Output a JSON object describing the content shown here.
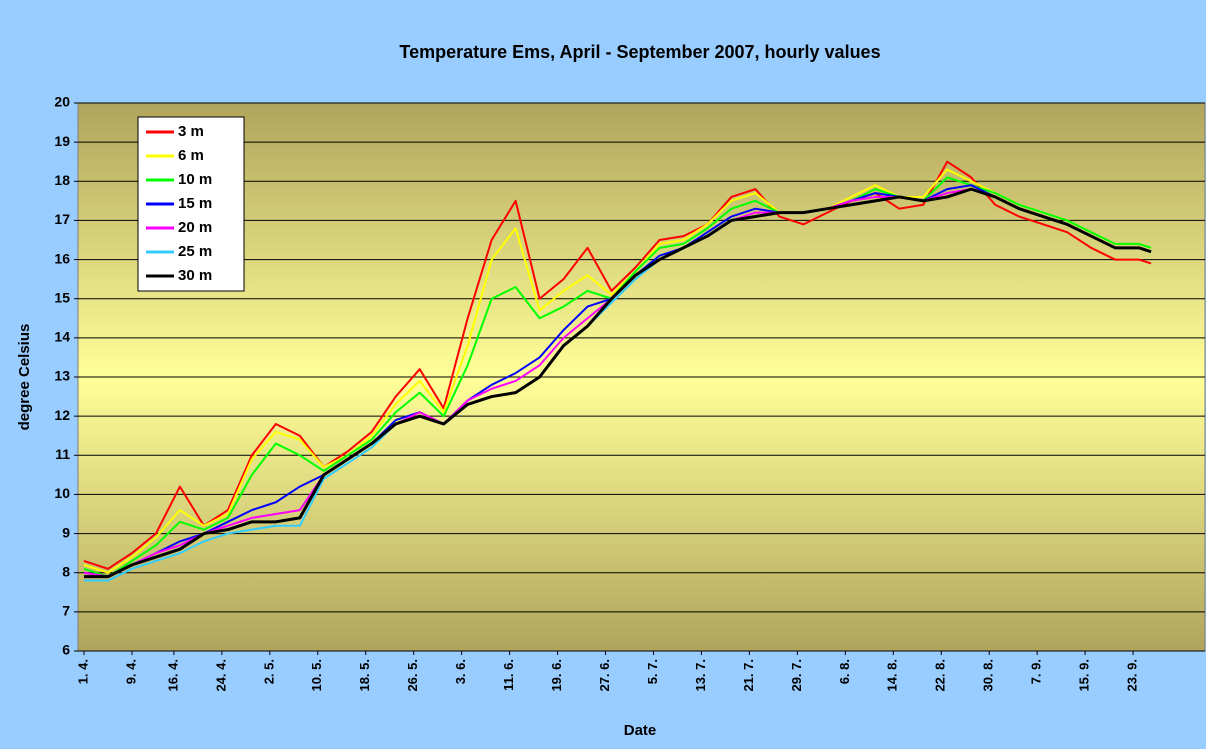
{
  "chart_data": {
    "type": "line",
    "title": "Temperature Ems, April - September 2007, hourly values",
    "x_label": "Date",
    "y_label": "degree Celsius",
    "x": [
      0,
      4,
      8,
      12,
      16,
      20,
      24,
      28,
      32,
      36,
      40,
      44,
      48,
      52,
      56,
      60,
      64,
      68,
      72,
      76,
      80,
      84,
      88,
      92,
      96,
      100,
      104,
      108,
      112,
      116,
      120,
      124,
      128,
      132,
      136,
      140,
      144,
      148,
      152,
      156,
      160,
      164,
      168,
      172,
      176,
      178
    ],
    "series": [
      {
        "name": "3 m",
        "color": "#ff0000",
        "values": [
          8.3,
          8.1,
          8.5,
          9.0,
          10.2,
          9.2,
          9.6,
          11.0,
          11.8,
          11.5,
          10.7,
          11.1,
          11.6,
          12.5,
          13.2,
          12.2,
          14.5,
          16.5,
          17.5,
          15.0,
          15.5,
          16.3,
          15.2,
          15.8,
          16.5,
          16.6,
          16.9,
          17.6,
          17.8,
          17.1,
          16.9,
          17.2,
          17.5,
          17.7,
          17.3,
          17.4,
          18.5,
          18.1,
          17.4,
          17.1,
          16.9,
          16.7,
          16.3,
          16.0,
          16.0,
          15.9
        ]
      },
      {
        "name": "6 m",
        "color": "#ffff00",
        "values": [
          8.2,
          8.0,
          8.4,
          8.9,
          9.6,
          9.2,
          9.5,
          10.9,
          11.6,
          11.4,
          10.7,
          11.0,
          11.5,
          12.3,
          12.9,
          12.1,
          13.8,
          16.0,
          16.8,
          14.7,
          15.2,
          15.6,
          15.1,
          15.7,
          16.4,
          16.5,
          16.9,
          17.5,
          17.7,
          17.2,
          17.2,
          17.3,
          17.6,
          17.9,
          17.6,
          17.6,
          18.3,
          18.0,
          17.7,
          17.4,
          17.2,
          17.0,
          16.7,
          16.4,
          16.4,
          16.3
        ]
      },
      {
        "name": "10 m",
        "color": "#00ff00",
        "values": [
          8.1,
          7.9,
          8.3,
          8.7,
          9.3,
          9.1,
          9.4,
          10.5,
          11.3,
          11.0,
          10.6,
          11.0,
          11.4,
          12.1,
          12.6,
          12.0,
          13.3,
          15.0,
          15.3,
          14.5,
          14.8,
          15.2,
          15.0,
          15.7,
          16.3,
          16.4,
          16.8,
          17.3,
          17.5,
          17.2,
          17.2,
          17.3,
          17.5,
          17.8,
          17.6,
          17.5,
          18.1,
          17.9,
          17.7,
          17.4,
          17.2,
          17.0,
          16.7,
          16.4,
          16.4,
          16.3
        ]
      },
      {
        "name": "15 m",
        "color": "#0000ff",
        "values": [
          8.0,
          7.9,
          8.2,
          8.5,
          8.8,
          9.0,
          9.3,
          9.6,
          9.8,
          10.2,
          10.5,
          10.9,
          11.3,
          11.9,
          12.1,
          11.8,
          12.4,
          12.8,
          13.1,
          13.5,
          14.2,
          14.8,
          15.0,
          15.6,
          16.1,
          16.3,
          16.7,
          17.1,
          17.3,
          17.2,
          17.2,
          17.3,
          17.5,
          17.7,
          17.6,
          17.5,
          17.8,
          17.9,
          17.6,
          17.3,
          17.1,
          16.9,
          16.6,
          16.3,
          16.3,
          16.2
        ]
      },
      {
        "name": "20 m",
        "color": "#ff00ff",
        "values": [
          8.0,
          7.9,
          8.2,
          8.5,
          8.7,
          9.0,
          9.2,
          9.4,
          9.5,
          9.6,
          10.5,
          10.9,
          11.3,
          11.8,
          12.1,
          11.8,
          12.4,
          12.7,
          12.9,
          13.3,
          14.0,
          14.5,
          15.0,
          15.6,
          16.0,
          16.3,
          16.6,
          17.0,
          17.2,
          17.2,
          17.2,
          17.3,
          17.5,
          17.6,
          17.6,
          17.5,
          17.7,
          17.8,
          17.6,
          17.3,
          17.1,
          16.9,
          16.6,
          16.3,
          16.3,
          16.2
        ]
      },
      {
        "name": "25 m",
        "color": "#33ccff",
        "values": [
          7.8,
          7.8,
          8.1,
          8.3,
          8.5,
          8.8,
          9.0,
          9.1,
          9.2,
          9.2,
          10.4,
          10.8,
          11.2,
          11.8,
          12.0,
          11.8,
          12.3,
          12.5,
          12.6,
          13.0,
          13.8,
          14.3,
          14.9,
          15.5,
          16.0,
          16.3,
          16.6,
          17.0,
          17.1,
          17.2,
          17.2,
          17.3,
          17.4,
          17.5,
          17.6,
          17.5,
          17.6,
          17.8,
          17.6,
          17.3,
          17.1,
          16.9,
          16.6,
          16.3,
          16.3,
          16.2
        ]
      },
      {
        "name": "30 m",
        "color": "#000000",
        "values": [
          7.9,
          7.9,
          8.2,
          8.4,
          8.6,
          9.0,
          9.1,
          9.3,
          9.3,
          9.4,
          10.5,
          10.9,
          11.3,
          11.8,
          12.0,
          11.8,
          12.3,
          12.5,
          12.6,
          13.0,
          13.8,
          14.3,
          15.0,
          15.6,
          16.0,
          16.3,
          16.6,
          17.0,
          17.1,
          17.2,
          17.2,
          17.3,
          17.4,
          17.5,
          17.6,
          17.5,
          17.6,
          17.8,
          17.6,
          17.3,
          17.1,
          16.9,
          16.6,
          16.3,
          16.3,
          16.2
        ]
      }
    ],
    "xlim": [
      -1,
      187
    ],
    "xticks": [
      {
        "value": 0,
        "label": "1. 4."
      },
      {
        "value": 8,
        "label": "9. 4."
      },
      {
        "value": 15,
        "label": "16. 4."
      },
      {
        "value": 23,
        "label": "24. 4."
      },
      {
        "value": 31,
        "label": "2. 5."
      },
      {
        "value": 39,
        "label": "10. 5."
      },
      {
        "value": 47,
        "label": "18. 5."
      },
      {
        "value": 55,
        "label": "26. 5."
      },
      {
        "value": 63,
        "label": "3. 6."
      },
      {
        "value": 71,
        "label": "11. 6."
      },
      {
        "value": 79,
        "label": "19. 6."
      },
      {
        "value": 87,
        "label": "27. 6."
      },
      {
        "value": 95,
        "label": "5. 7."
      },
      {
        "value": 103,
        "label": "13. 7."
      },
      {
        "value": 111,
        "label": "21. 7."
      },
      {
        "value": 119,
        "label": "29. 7."
      },
      {
        "value": 127,
        "label": "6. 8."
      },
      {
        "value": 135,
        "label": "14. 8."
      },
      {
        "value": 143,
        "label": "22. 8."
      },
      {
        "value": 151,
        "label": "30. 8."
      },
      {
        "value": 159,
        "label": "7. 9."
      },
      {
        "value": 167,
        "label": "15. 9."
      },
      {
        "value": 175,
        "label": "23. 9."
      }
    ],
    "ylim": [
      6,
      20
    ],
    "yticks": [
      6,
      7,
      8,
      9,
      10,
      11,
      12,
      13,
      14,
      15,
      16,
      17,
      18,
      19,
      20
    ],
    "grid": true,
    "legend": "upper left"
  }
}
